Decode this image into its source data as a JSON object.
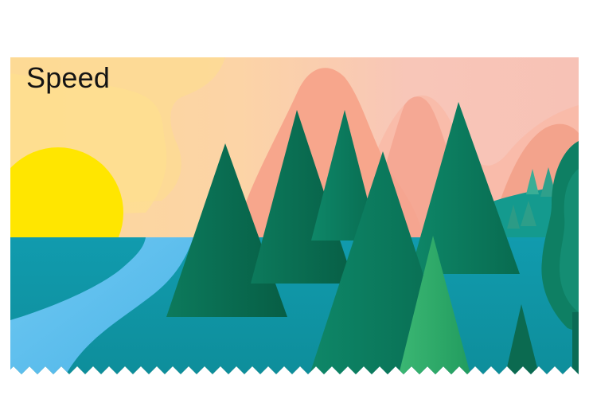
{
  "card": {
    "title": "Speed"
  },
  "palette": {
    "sky_warm": "#FDD7A0",
    "sky_pink": "#F9C3B2",
    "sun": "#FFE600",
    "water": "#1497A8",
    "river": "#64C3EF",
    "mountain": "#F8A88E",
    "tree_dark": "#0A6A4F",
    "tree_mid": "#0B8066",
    "tree_light": "#2FA86A"
  }
}
